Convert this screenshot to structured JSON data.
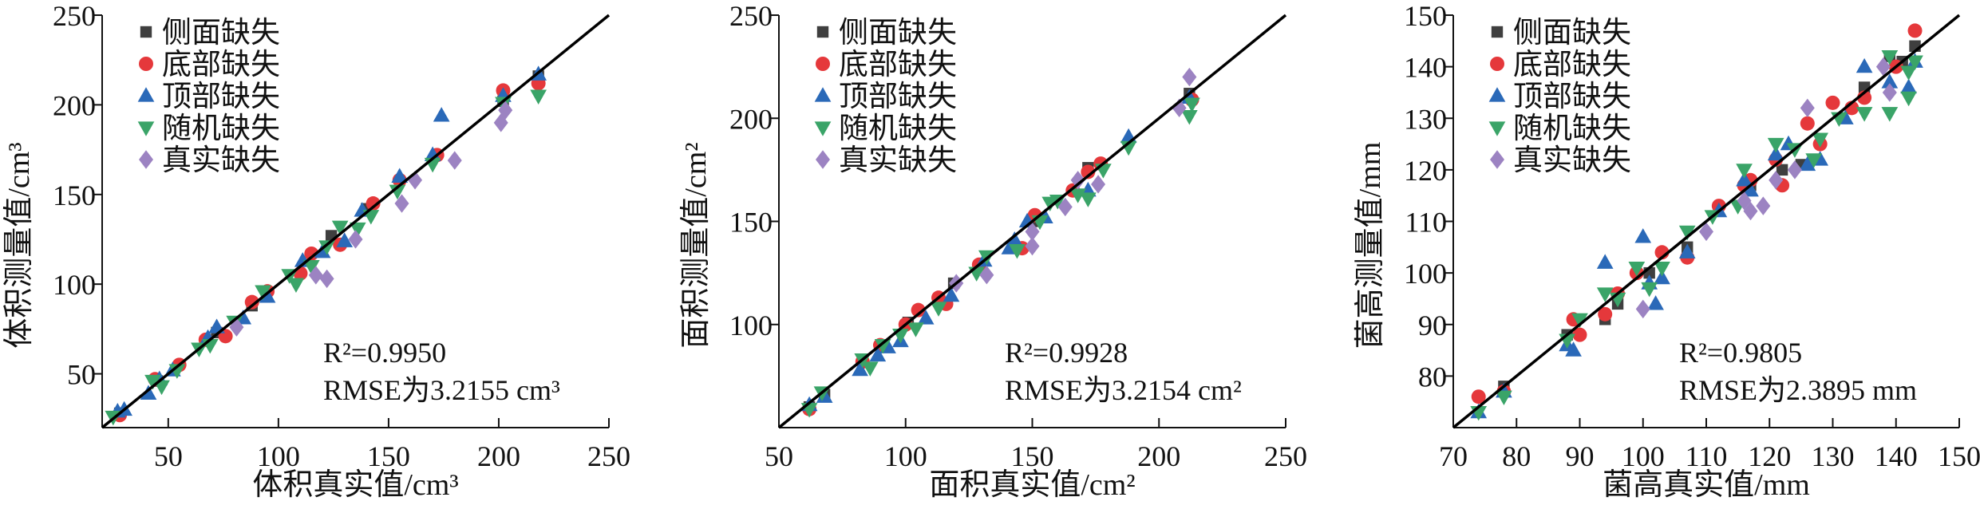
{
  "colors": {
    "side": "#3f3f3f",
    "bottom": "#e5383b",
    "top": "#2a69b8",
    "random": "#3aa468",
    "real": "#9c83c2",
    "line": "#000000"
  },
  "chart_data": [
    {
      "type": "scatter",
      "xlabel": "体积真实值/cm³",
      "ylabel": "体积测量值/cm³",
      "xlim": [
        20,
        250
      ],
      "ylim": [
        20,
        250
      ],
      "xticks": [
        50,
        100,
        150,
        200,
        250
      ],
      "yticks": [
        50,
        100,
        150,
        200,
        250
      ],
      "reference_line": "y=x",
      "legend_position": "top-left",
      "annotations": [
        "R²=0.9950",
        "RMSE为3.2155 cm³"
      ],
      "series": [
        {
          "key": "side",
          "name": "侧面缺失",
          "marker": "square",
          "points": [
            [
              28,
              28
            ],
            [
              45,
              46
            ],
            [
              72,
              73
            ],
            [
              88,
              88
            ],
            [
              124,
              127
            ],
            [
              140,
              142
            ],
            [
              202,
              202
            ],
            [
              218,
              216
            ]
          ]
        },
        {
          "key": "bottom",
          "name": "底部缺失",
          "marker": "circle",
          "points": [
            [
              28,
              27
            ],
            [
              44,
              47
            ],
            [
              55,
              55
            ],
            [
              67,
              69
            ],
            [
              76,
              71
            ],
            [
              88,
              90
            ],
            [
              95,
              96
            ],
            [
              110,
              106
            ],
            [
              115,
              117
            ],
            [
              128,
              122
            ],
            [
              143,
              145
            ],
            [
              155,
              158
            ],
            [
              172,
              172
            ],
            [
              202,
              208
            ],
            [
              218,
              212
            ]
          ]
        },
        {
          "key": "top",
          "name": "顶部缺失",
          "marker": "triangle-up",
          "points": [
            [
              27,
              29
            ],
            [
              30,
              30
            ],
            [
              41,
              39
            ],
            [
              46,
              47
            ],
            [
              52,
              52
            ],
            [
              68,
              70
            ],
            [
              72,
              76
            ],
            [
              84,
              81
            ],
            [
              95,
              93
            ],
            [
              111,
              113
            ],
            [
              120,
              118
            ],
            [
              130,
              124
            ],
            [
              138,
              141
            ],
            [
              155,
              160
            ],
            [
              170,
              172
            ],
            [
              174,
              194
            ],
            [
              202,
              205
            ],
            [
              218,
              217
            ]
          ]
        },
        {
          "key": "random",
          "name": "随机缺失",
          "marker": "triangle-down",
          "points": [
            [
              25,
              26
            ],
            [
              43,
              46
            ],
            [
              47,
              43
            ],
            [
              54,
              52
            ],
            [
              64,
              64
            ],
            [
              69,
              66
            ],
            [
              80,
              79
            ],
            [
              93,
              96
            ],
            [
              105,
              105
            ],
            [
              108,
              100
            ],
            [
              115,
              110
            ],
            [
              122,
              121
            ],
            [
              128,
              132
            ],
            [
              136,
              131
            ],
            [
              142,
              138
            ],
            [
              154,
              152
            ],
            [
              170,
              167
            ],
            [
              202,
              201
            ],
            [
              218,
              205
            ]
          ]
        },
        {
          "key": "real",
          "name": "真实缺失",
          "marker": "diamond",
          "points": [
            [
              81,
              76
            ],
            [
              117,
              105
            ],
            [
              122,
              103
            ],
            [
              135,
              125
            ],
            [
              156,
              145
            ],
            [
              162,
              158
            ],
            [
              180,
              169
            ],
            [
              201,
              190
            ],
            [
              203,
              197
            ]
          ]
        }
      ]
    },
    {
      "type": "scatter",
      "xlabel": "面积真实值/cm²",
      "ylabel": "面积测量值/cm²",
      "xlim": [
        50,
        250
      ],
      "ylim": [
        50,
        250
      ],
      "xticks": [
        50,
        100,
        150,
        200,
        250
      ],
      "yticks": [
        100,
        150,
        200,
        250
      ],
      "reference_line": "y=x",
      "legend_position": "top-left",
      "annotations": [
        "R²=0.9928",
        "RMSE为3.2154 cm²"
      ],
      "series": [
        {
          "key": "side",
          "name": "侧面缺失",
          "marker": "square",
          "points": [
            [
              62,
              60
            ],
            [
              68,
              66
            ],
            [
              101,
              101
            ],
            [
              119,
              120
            ],
            [
              150,
              150
            ],
            [
              172,
              176
            ],
            [
              212,
              212
            ]
          ]
        },
        {
          "key": "bottom",
          "name": "底部缺失",
          "marker": "circle",
          "points": [
            [
              62,
              59
            ],
            [
              83,
              82
            ],
            [
              90,
              90
            ],
            [
              100,
              100
            ],
            [
              105,
              107
            ],
            [
              113,
              113
            ],
            [
              116,
              110
            ],
            [
              129,
              129
            ],
            [
              146,
              137
            ],
            [
              151,
              153
            ],
            [
              166,
              165
            ],
            [
              172,
              174
            ],
            [
              177,
              178
            ],
            [
              213,
              209
            ]
          ]
        },
        {
          "key": "top",
          "name": "顶部缺失",
          "marker": "triangle-up",
          "points": [
            [
              62,
              61
            ],
            [
              68,
              65
            ],
            [
              82,
              78
            ],
            [
              89,
              85
            ],
            [
              93,
              89
            ],
            [
              98,
              92
            ],
            [
              108,
              103
            ],
            [
              118,
              114
            ],
            [
              131,
              131
            ],
            [
              141,
              137
            ],
            [
              143,
              141
            ],
            [
              148,
              150
            ],
            [
              155,
              152
            ],
            [
              172,
              165
            ],
            [
              188,
              191
            ],
            [
              212,
              210
            ]
          ]
        },
        {
          "key": "random",
          "name": "随机缺失",
          "marker": "triangle-down",
          "points": [
            [
              62,
              59
            ],
            [
              67,
              67
            ],
            [
              83,
              83
            ],
            [
              86,
              79
            ],
            [
              91,
              90
            ],
            [
              98,
              95
            ],
            [
              104,
              98
            ],
            [
              113,
              108
            ],
            [
              128,
              125
            ],
            [
              132,
              133
            ],
            [
              144,
              136
            ],
            [
              153,
              150
            ],
            [
              157,
              159
            ],
            [
              160,
              160
            ],
            [
              168,
              163
            ],
            [
              172,
              161
            ],
            [
              178,
              175
            ],
            [
              188,
              186
            ],
            [
              212,
              201
            ],
            [
              213,
              207
            ]
          ]
        },
        {
          "key": "real",
          "name": "真实缺失",
          "marker": "diamond",
          "points": [
            [
              120,
              120
            ],
            [
              132,
              124
            ],
            [
              150,
              145
            ],
            [
              150,
              138
            ],
            [
              163,
              157
            ],
            [
              168,
              170
            ],
            [
              176,
              168
            ],
            [
              208,
              205
            ],
            [
              212,
              220
            ]
          ]
        }
      ]
    },
    {
      "type": "scatter",
      "xlabel": "菌高真实值/mm",
      "ylabel": "菌高测量值/mm",
      "xlim": [
        70,
        150
      ],
      "ylim": [
        70,
        150
      ],
      "xticks": [
        70,
        80,
        90,
        100,
        110,
        120,
        130,
        140,
        150
      ],
      "yticks": [
        80,
        90,
        100,
        110,
        120,
        130,
        140,
        150
      ],
      "reference_line": "y=x",
      "legend_position": "top-left",
      "annotations": [
        "R²=0.9805",
        "RMSE为2.3895 mm"
      ],
      "series": [
        {
          "key": "side",
          "name": "侧面缺失",
          "marker": "square",
          "points": [
            [
              78,
              78
            ],
            [
              88,
              88
            ],
            [
              94,
              91
            ],
            [
              96,
              94
            ],
            [
              101,
              100
            ],
            [
              107,
              105
            ],
            [
              117,
              117
            ],
            [
              122,
              120
            ],
            [
              125,
              121
            ],
            [
              135,
              136
            ],
            [
              139,
              142
            ],
            [
              141,
              141
            ],
            [
              143,
              144
            ]
          ]
        },
        {
          "key": "bottom",
          "name": "底部缺失",
          "marker": "circle",
          "points": [
            [
              74,
              76
            ],
            [
              78,
              77
            ],
            [
              89,
              91
            ],
            [
              90,
              88
            ],
            [
              94,
              92
            ],
            [
              96,
              96
            ],
            [
              99,
              100
            ],
            [
              103,
              104
            ],
            [
              107,
              103
            ],
            [
              112,
              113
            ],
            [
              116,
              117
            ],
            [
              117,
              118
            ],
            [
              121,
              122
            ],
            [
              122,
              117
            ],
            [
              126,
              129
            ],
            [
              128,
              125
            ],
            [
              130,
              133
            ],
            [
              133,
              132
            ],
            [
              135,
              134
            ],
            [
              140,
              140
            ],
            [
              143,
              147
            ]
          ]
        },
        {
          "key": "top",
          "name": "顶部缺失",
          "marker": "triangle-up",
          "points": [
            [
              74,
              73
            ],
            [
              78,
              77
            ],
            [
              88,
              86
            ],
            [
              89,
              85
            ],
            [
              94,
              102
            ],
            [
              100,
              107
            ],
            [
              101,
              98
            ],
            [
              102,
              94
            ],
            [
              103,
              99
            ],
            [
              107,
              104
            ],
            [
              112,
              112
            ],
            [
              116,
              118
            ],
            [
              117,
              116
            ],
            [
              121,
              123
            ],
            [
              123,
              125
            ],
            [
              126,
              121
            ],
            [
              128,
              122
            ],
            [
              132,
              130
            ],
            [
              135,
              140
            ],
            [
              139,
              137
            ],
            [
              142,
              136
            ],
            [
              143,
              141
            ]
          ]
        },
        {
          "key": "random",
          "name": "随机缺失",
          "marker": "triangle-down",
          "points": [
            [
              74,
              73
            ],
            [
              78,
              76
            ],
            [
              88,
              87
            ],
            [
              90,
              91
            ],
            [
              94,
              96
            ],
            [
              96,
              95
            ],
            [
              99,
              101
            ],
            [
              101,
              97
            ],
            [
              103,
              101
            ],
            [
              107,
              108
            ],
            [
              111,
              111
            ],
            [
              115,
              113
            ],
            [
              116,
              120
            ],
            [
              121,
              125
            ],
            [
              124,
              124
            ],
            [
              127,
              122
            ],
            [
              128,
              126
            ],
            [
              131,
              130
            ],
            [
              135,
              131
            ],
            [
              139,
              131
            ],
            [
              139,
              142
            ],
            [
              142,
              134
            ],
            [
              142,
              139
            ],
            [
              143,
              141
            ]
          ]
        },
        {
          "key": "real",
          "name": "真实缺失",
          "marker": "diamond",
          "points": [
            [
              100,
              93
            ],
            [
              110,
              108
            ],
            [
              116,
              114
            ],
            [
              117,
              112
            ],
            [
              119,
              113
            ],
            [
              121,
              118
            ],
            [
              124,
              120
            ],
            [
              126,
              132
            ],
            [
              138,
              140
            ],
            [
              139,
              135
            ]
          ]
        }
      ]
    }
  ]
}
